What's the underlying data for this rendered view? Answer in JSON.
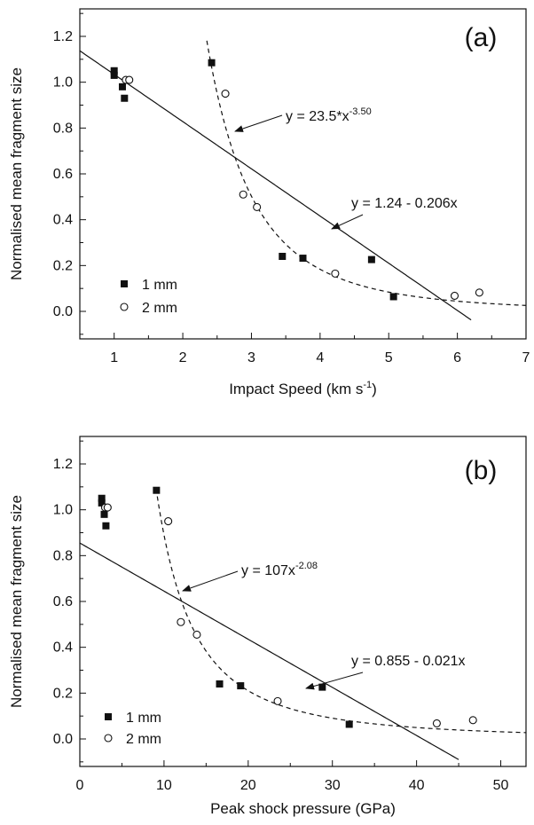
{
  "chart_data": [
    {
      "type": "scatter",
      "panel_label": "(a)",
      "xlabel": "Impact Speed (km s",
      "xlabel_sup": "-1",
      "xlabel_tail": ")",
      "ylabel": "Normalised mean fragment size",
      "xlim": [
        0.5,
        7
      ],
      "ylim": [
        -0.12,
        1.32
      ],
      "xticks": [
        1,
        2,
        3,
        4,
        5,
        6,
        7
      ],
      "yticks": [
        0.0,
        0.2,
        0.4,
        0.6,
        0.8,
        1.0,
        1.2
      ],
      "series": [
        {
          "name": "1 mm",
          "marker": "filled-square",
          "color": "#111111",
          "points": [
            [
              1.0,
              1.05
            ],
            [
              1.0,
              1.03
            ],
            [
              1.12,
              0.98
            ],
            [
              1.15,
              0.93
            ],
            [
              2.42,
              1.085
            ],
            [
              3.45,
              0.24
            ],
            [
              3.75,
              0.232
            ],
            [
              4.75,
              0.226
            ],
            [
              5.07,
              0.064
            ]
          ]
        },
        {
          "name": "2 mm",
          "marker": "open-circle",
          "color": "#111111",
          "points": [
            [
              1.17,
              1.01
            ],
            [
              1.22,
              1.01
            ],
            [
              2.62,
              0.95
            ],
            [
              2.88,
              0.51
            ],
            [
              3.08,
              0.455
            ],
            [
              4.22,
              0.165
            ],
            [
              5.96,
              0.068
            ],
            [
              6.32,
              0.082
            ]
          ]
        }
      ],
      "fits": [
        {
          "label": "y = 1.24 - 0.206x",
          "style": "solid",
          "form": "linear",
          "a": 1.24,
          "b": -0.206,
          "x_range": [
            0.5,
            6.2
          ]
        },
        {
          "label_base": "y = 23.5*x",
          "label_exp": "-3.50",
          "style": "dashed",
          "form": "power",
          "a": 23.5,
          "b": -3.5,
          "x_range": [
            2.35,
            7
          ]
        }
      ]
    },
    {
      "type": "scatter",
      "panel_label": "(b)",
      "xlabel": "Peak shock pressure (GPa)",
      "ylabel": "Normalised mean fragment size",
      "xlim": [
        0,
        53
      ],
      "ylim": [
        -0.12,
        1.32
      ],
      "xticks": [
        0,
        10,
        20,
        30,
        40,
        50
      ],
      "yticks": [
        0.0,
        0.2,
        0.4,
        0.6,
        0.8,
        1.0,
        1.2
      ],
      "series": [
        {
          "name": "1 mm",
          "marker": "filled-square",
          "color": "#111111",
          "points": [
            [
              2.6,
              1.05
            ],
            [
              2.6,
              1.03
            ],
            [
              2.9,
              0.98
            ],
            [
              3.1,
              0.93
            ],
            [
              9.1,
              1.085
            ],
            [
              16.6,
              0.24
            ],
            [
              19.1,
              0.232
            ],
            [
              28.8,
              0.226
            ],
            [
              32.0,
              0.064
            ]
          ]
        },
        {
          "name": "2 mm",
          "marker": "open-circle",
          "color": "#111111",
          "points": [
            [
              3.0,
              1.01
            ],
            [
              3.3,
              1.01
            ],
            [
              10.5,
              0.95
            ],
            [
              12.0,
              0.51
            ],
            [
              13.9,
              0.455
            ],
            [
              23.5,
              0.165
            ],
            [
              42.4,
              0.068
            ],
            [
              46.7,
              0.082
            ]
          ]
        }
      ],
      "fits": [
        {
          "label": "y = 0.855 - 0.021x",
          "style": "solid",
          "form": "linear",
          "a": 0.855,
          "b": -0.021,
          "x_range": [
            0,
            45
          ]
        },
        {
          "label_base": "y = 107x",
          "label_exp": "-2.08",
          "style": "dashed",
          "form": "power",
          "a": 107,
          "b": -2.08,
          "x_range": [
            9.2,
            53
          ]
        }
      ]
    }
  ]
}
